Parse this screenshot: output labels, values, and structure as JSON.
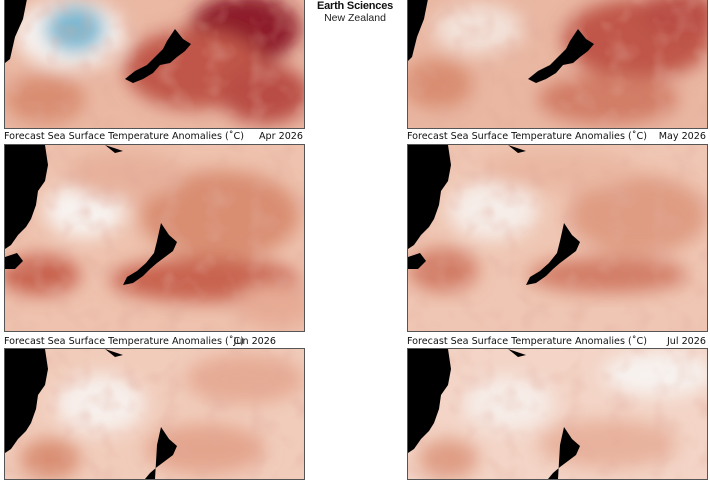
{
  "brand": {
    "line1": "Earth Sciences",
    "line2": "New Zealand"
  },
  "forecast_label": "Forecast Sea Surface Temperature Anomalies (˚C)",
  "colors": {
    "land": "#000000",
    "cool": "#79b8d1",
    "neutral": "#f7f2ef",
    "warm_light": "#efc3ad",
    "warm_mid": "#d98e72",
    "warm_strong": "#b94e45",
    "warm_extreme": "#8e1a2c"
  },
  "panels": [
    {
      "id": "top-left",
      "date": ""
    },
    {
      "id": "top-right",
      "date": ""
    },
    {
      "id": "mid-left",
      "date": "Apr 2026"
    },
    {
      "id": "mid-right",
      "date": "May 2026"
    },
    {
      "id": "bot-left",
      "date": "Jun 2026"
    },
    {
      "id": "bot-right",
      "date": "Jul 2026"
    }
  ]
}
